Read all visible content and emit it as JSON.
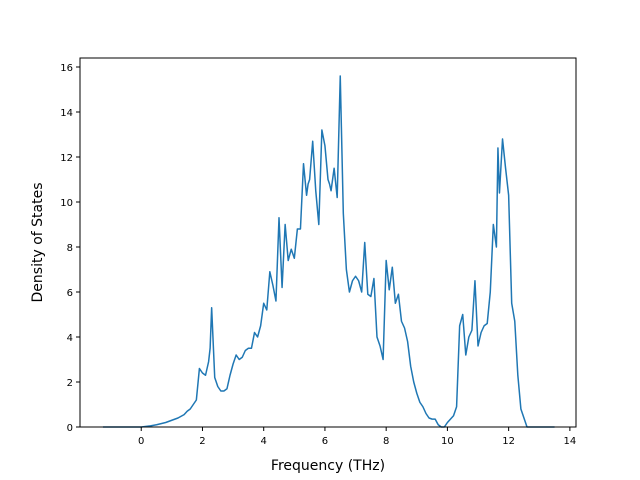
{
  "chart_data": {
    "type": "line",
    "title": "",
    "xlabel": "Frequency (THz)",
    "ylabel": "Density of States",
    "xlim": [
      -2.0,
      14.2
    ],
    "ylim": [
      0,
      16.4
    ],
    "xticks": [
      0,
      2,
      4,
      6,
      8,
      10,
      12,
      14
    ],
    "yticks": [
      0,
      2,
      4,
      6,
      8,
      10,
      12,
      14,
      16
    ],
    "grid": false,
    "legend": "none",
    "series": [
      {
        "color": "#1f77b4",
        "x": [
          -1.25,
          -1.0,
          -0.5,
          0.0,
          0.3,
          0.5,
          0.8,
          1.0,
          1.2,
          1.4,
          1.5,
          1.6,
          1.7,
          1.8,
          1.9,
          2.0,
          2.1,
          2.2,
          2.25,
          2.3,
          2.4,
          2.5,
          2.6,
          2.7,
          2.8,
          2.9,
          3.0,
          3.1,
          3.2,
          3.3,
          3.4,
          3.5,
          3.6,
          3.7,
          3.8,
          3.9,
          4.0,
          4.1,
          4.2,
          4.3,
          4.4,
          4.5,
          4.6,
          4.7,
          4.8,
          4.9,
          5.0,
          5.1,
          5.2,
          5.3,
          5.4,
          5.45,
          5.5,
          5.6,
          5.7,
          5.8,
          5.9,
          6.0,
          6.1,
          6.15,
          6.2,
          6.3,
          6.4,
          6.5,
          6.6,
          6.7,
          6.8,
          6.9,
          7.0,
          7.1,
          7.2,
          7.3,
          7.4,
          7.5,
          7.6,
          7.7,
          7.8,
          7.9,
          8.0,
          8.1,
          8.2,
          8.3,
          8.4,
          8.5,
          8.6,
          8.7,
          8.8,
          8.9,
          9.0,
          9.1,
          9.2,
          9.3,
          9.4,
          9.5,
          9.6,
          9.7,
          9.8,
          9.9,
          10.0,
          10.1,
          10.2,
          10.3,
          10.4,
          10.5,
          10.6,
          10.7,
          10.8,
          10.9,
          11.0,
          11.1,
          11.2,
          11.3,
          11.4,
          11.5,
          11.6,
          11.65,
          11.7,
          11.8,
          11.9,
          12.0,
          12.1,
          12.2,
          12.3,
          12.4,
          12.6,
          13.0,
          13.5
        ],
        "values": [
          0.0,
          0.0,
          0.0,
          0.0,
          0.05,
          0.1,
          0.2,
          0.3,
          0.4,
          0.55,
          0.7,
          0.8,
          1.0,
          1.2,
          2.6,
          2.4,
          2.3,
          2.9,
          3.5,
          5.3,
          2.2,
          1.8,
          1.6,
          1.6,
          1.7,
          2.3,
          2.8,
          3.2,
          3.0,
          3.1,
          3.4,
          3.5,
          3.5,
          4.2,
          4.0,
          4.5,
          5.5,
          5.2,
          6.9,
          6.3,
          5.6,
          9.3,
          6.2,
          9.0,
          7.4,
          7.9,
          7.5,
          8.8,
          8.8,
          11.7,
          10.3,
          10.8,
          11.0,
          12.7,
          10.5,
          9.0,
          13.2,
          12.5,
          11.0,
          10.8,
          10.5,
          11.5,
          10.2,
          15.6,
          9.5,
          7.0,
          6.0,
          6.5,
          6.7,
          6.5,
          6.0,
          8.2,
          5.9,
          5.8,
          6.6,
          4.0,
          3.6,
          3.0,
          7.4,
          6.1,
          7.1,
          5.5,
          5.9,
          4.7,
          4.4,
          3.8,
          2.7,
          2.0,
          1.5,
          1.1,
          0.9,
          0.6,
          0.4,
          0.35,
          0.35,
          0.1,
          0.0,
          0.0,
          0.2,
          0.35,
          0.5,
          0.9,
          4.5,
          5.0,
          3.2,
          4.0,
          4.3,
          6.5,
          3.6,
          4.2,
          4.5,
          4.6,
          6.0,
          9.0,
          8.0,
          12.4,
          10.4,
          12.8,
          11.5,
          10.3,
          5.5,
          4.7,
          2.3,
          0.8,
          0.0,
          0.0,
          0.0
        ]
      }
    ]
  }
}
